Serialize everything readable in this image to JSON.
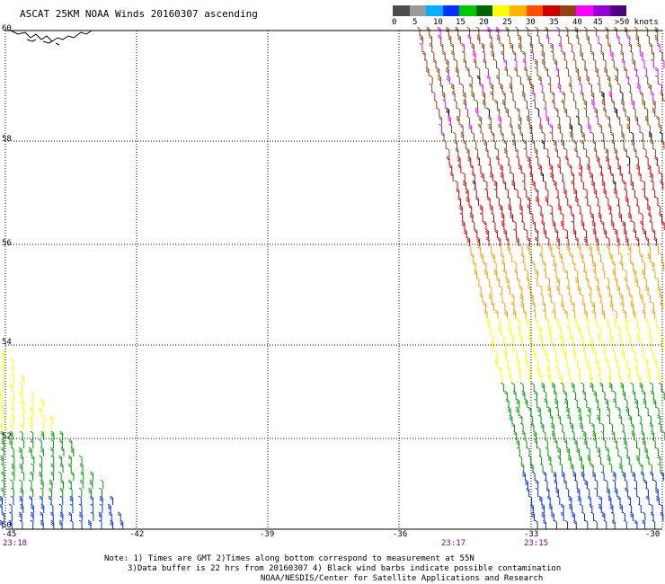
{
  "header": {
    "title": "ASCAT 25KM NOAA Winds 20160307 ascending"
  },
  "legend": {
    "colors": [
      "#4d4d4d",
      "#9a9a9a",
      "#00b0ff",
      "#0030ff",
      "#00c800",
      "#006400",
      "#ffff00",
      "#ffb400",
      "#ff5000",
      "#cc0000",
      "#8b4513",
      "#ff00ff",
      "#9400d3",
      "#4b0082"
    ],
    "labels": [
      "0",
      "5",
      "10",
      "15",
      "20",
      "25",
      "30",
      "35",
      "40",
      "45",
      ">50 knots"
    ]
  },
  "axes": {
    "lat_labels": [
      "60",
      "58",
      "56",
      "54",
      "52",
      "50"
    ],
    "lon_labels": [
      "-45",
      "-42",
      "-39",
      "-36",
      "-33",
      "-30"
    ],
    "time_labels": [
      "23:18",
      "23:17",
      "23:15"
    ]
  },
  "notes": {
    "line1": "Note: 1) Times are GMT 2)Times along bottom correspond to measurement at 55N",
    "line2": "3)Data buffer is 22 hrs from 20160307 4) Black wind barbs indicate possible contamination",
    "line3": "NOAA/NESDIS/Center for Satellite Applications and Research"
  },
  "map": {
    "lat_range": [
      50,
      60
    ],
    "lon_range": [
      -45,
      -30
    ],
    "speed_colors": {
      "blue": "#0030ff",
      "green": "#00a000",
      "yellow": "#ffff00",
      "orange": "#ffa000",
      "red": "#dd0000",
      "brown": "#8b4513",
      "magenta": "#ff00ff"
    }
  }
}
